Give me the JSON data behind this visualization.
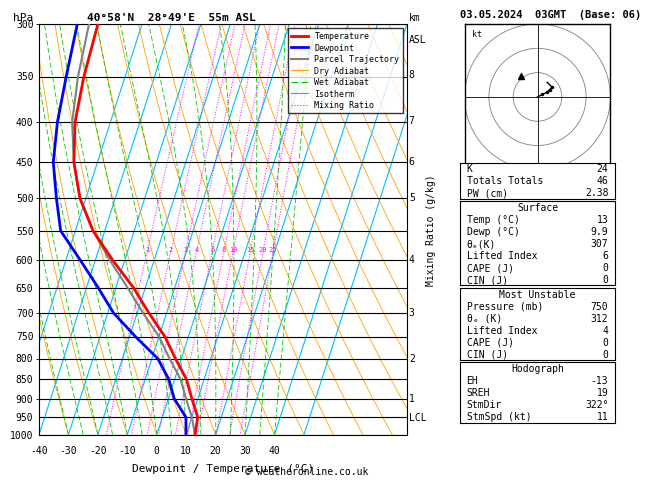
{
  "title_left": "40°58'N  28°49'E  55m ASL",
  "title_right": "03.05.2024  03GMT  (Base: 06)",
  "xlabel": "Dewpoint / Temperature (°C)",
  "pressure_levels": [
    300,
    350,
    400,
    450,
    500,
    550,
    600,
    650,
    700,
    750,
    800,
    850,
    900,
    950,
    1000
  ],
  "xlim": [
    -40,
    40
  ],
  "skew_factor": 45,
  "isotherm_color": "#00bfff",
  "dry_adiabat_color": "#ffa500",
  "wet_adiabat_color": "#00cc00",
  "mixing_ratio_color": "#ff00ff",
  "mixing_ratio_values": [
    1,
    2,
    3,
    4,
    6,
    8,
    10,
    15,
    20,
    25
  ],
  "temp_profile_T": [
    13,
    12,
    8,
    4,
    -2,
    -8,
    -16,
    -24,
    -34,
    -44,
    -52,
    -58,
    -62,
    -64,
    -65
  ],
  "temp_profile_P": [
    1000,
    950,
    900,
    850,
    800,
    750,
    700,
    650,
    600,
    550,
    500,
    450,
    400,
    350,
    300
  ],
  "dewp_profile_T": [
    9.9,
    8,
    2,
    -2,
    -8,
    -18,
    -28,
    -36,
    -45,
    -55,
    -60,
    -65,
    -68,
    -70,
    -72
  ],
  "dewp_profile_P": [
    1000,
    950,
    900,
    850,
    800,
    750,
    700,
    650,
    600,
    550,
    500,
    450,
    400,
    350,
    300
  ],
  "parcel_T": [
    13,
    10,
    6,
    2,
    -4,
    -10,
    -18,
    -26,
    -35,
    -44,
    -52,
    -58,
    -63,
    -66,
    -68
  ],
  "parcel_P": [
    1000,
    950,
    900,
    850,
    800,
    750,
    700,
    650,
    600,
    550,
    500,
    450,
    400,
    350,
    300
  ],
  "temp_color": "#ff0000",
  "dewp_color": "#0000ff",
  "parcel_color": "#808080",
  "lcl_pressure": 950,
  "km_ticks": [
    1,
    2,
    3,
    4,
    5,
    6,
    7,
    8
  ],
  "km_pressures": [
    898,
    798,
    698,
    598,
    498,
    448,
    398,
    348
  ],
  "stats": {
    "K": 24,
    "Totals_Totals": 46,
    "PW_cm": 2.38,
    "Surface_Temp": 13,
    "Surface_Dewp": 9.9,
    "Surface_theta_e": 307,
    "Surface_LI": 6,
    "Surface_CAPE": 0,
    "Surface_CIN": 0,
    "MU_Pressure": 750,
    "MU_theta_e": 312,
    "MU_LI": 4,
    "MU_CAPE": 0,
    "MU_CIN": 0,
    "EH": -13,
    "SREH": 19,
    "StmDir": 322,
    "StmSpd": 11
  },
  "copyright": "© weatheronline.co.uk"
}
